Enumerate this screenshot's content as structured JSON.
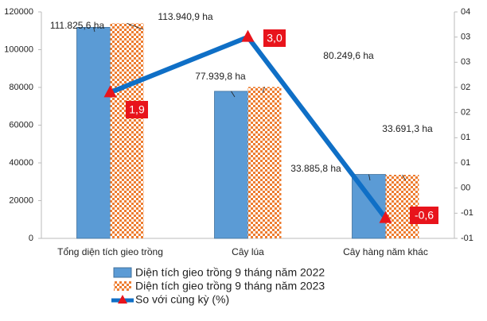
{
  "chart_data": {
    "type": "bar-line",
    "categories": [
      "Tổng diện tích gieo trồng",
      "Cây lúa",
      "Cây hàng năm khác"
    ],
    "series": [
      {
        "name": "Diện tích  gieo trồng 9 tháng năm 2022",
        "type": "bar",
        "color": "#5b9bd5",
        "values": [
          111825.6,
          77939.8,
          33885.8
        ],
        "value_labels": [
          "111.825,6  ha",
          "77.939,8  ha",
          "33.885,8  ha"
        ]
      },
      {
        "name": "Diện tích  gieo trồng 9 tháng năm 2023",
        "type": "bar",
        "color": "#ed7d31",
        "values": [
          113940.9,
          80249.6,
          33691.3
        ],
        "value_labels": [
          "113.940,9  ha",
          "80.249,6  ha",
          "33.691,3  ha"
        ]
      },
      {
        "name": "So với cùng kỳ (%)",
        "type": "line",
        "axis": "y2",
        "color": "#0f6fc6",
        "marker_color": "#e8141c",
        "values": [
          1.9,
          3.0,
          -0.6
        ],
        "value_labels": [
          "1,9",
          "3,0",
          "-0,6"
        ]
      }
    ],
    "ylim": [
      0,
      120000
    ],
    "yticks": [
      0,
      20000,
      40000,
      60000,
      80000,
      100000,
      120000
    ],
    "y2lim": [
      -1,
      3.5
    ],
    "y2ticks": [
      {
        "value": -1,
        "label": "-01"
      },
      {
        "value": -0.5,
        "label": "-01"
      },
      {
        "value": 0,
        "label": "00"
      },
      {
        "value": 0.5,
        "label": "01"
      },
      {
        "value": 1,
        "label": "01"
      },
      {
        "value": 1.5,
        "label": "02"
      },
      {
        "value": 2,
        "label": "02"
      },
      {
        "value": 2.5,
        "label": "03"
      },
      {
        "value": 3,
        "label": "03"
      },
      {
        "value": 3.5,
        "label": "04"
      }
    ],
    "grid": false,
    "legend": "bottom"
  }
}
